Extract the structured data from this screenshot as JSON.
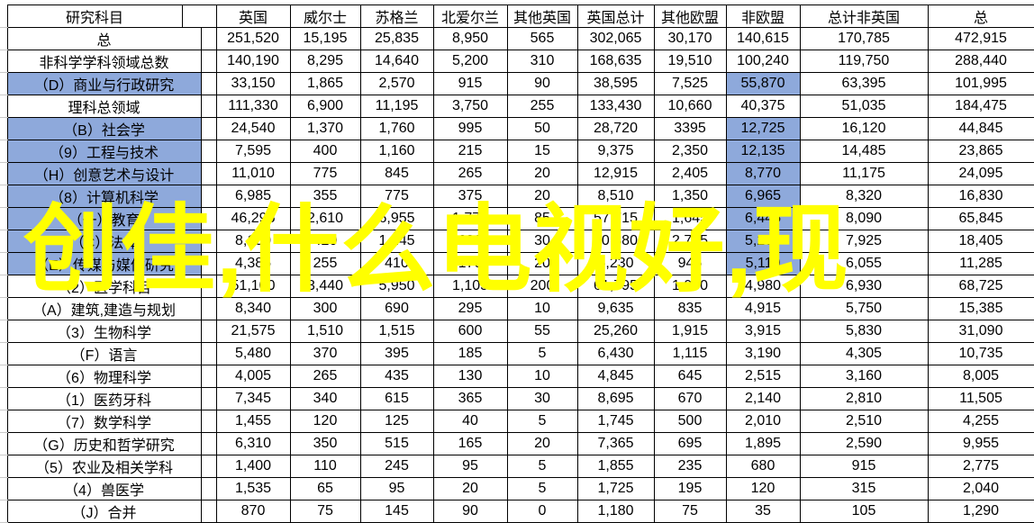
{
  "watermark": {
    "text": "创佳,什么电视好,现",
    "color": "#FFFF00"
  },
  "colors": {
    "highlight_blue": "#8EA9DB",
    "grid_line": "#000000",
    "sheet_gridline": "#c9c9c9",
    "background": "#ffffff"
  },
  "table": {
    "header": [
      "研究科目",
      "英国",
      "威尔士",
      "苏格兰",
      "北爱尔兰",
      "其他英国",
      "英国总计",
      "其他欧盟",
      "非欧盟",
      "总计非英国",
      "总"
    ],
    "rows": [
      {
        "label": "总",
        "label_hl": false,
        "noneu_hl": false,
        "values": [
          "251,520",
          "15,195",
          "25,835",
          "8,950",
          "565",
          "302,065",
          "30,170",
          "140,615",
          "170,785",
          "472,915"
        ]
      },
      {
        "label": "非科学学科领域总数",
        "label_hl": false,
        "noneu_hl": false,
        "values": [
          "140,190",
          "8,295",
          "14,640",
          "5,200",
          "310",
          "168,635",
          "19,510",
          "100,240",
          "119,750",
          "288,440"
        ]
      },
      {
        "label": "（D）商业与行政研究",
        "label_hl": true,
        "noneu_hl": true,
        "values": [
          "33,150",
          "1,865",
          "2,570",
          "915",
          "90",
          "38,595",
          "7,525",
          "55,870",
          "63,395",
          "101,995"
        ]
      },
      {
        "label": "理科总领域",
        "label_hl": false,
        "noneu_hl": false,
        "values": [
          "111,330",
          "6,900",
          "11,195",
          "3,750",
          "255",
          "133,430",
          "10,660",
          "40,375",
          "51,035",
          "184,475"
        ]
      },
      {
        "label": "（B）社会学",
        "label_hl": true,
        "noneu_hl": true,
        "values": [
          "24,540",
          "1,370",
          "1,760",
          "995",
          "50",
          "28,720",
          "3395",
          "12,725",
          "16,120",
          "44,845"
        ]
      },
      {
        "label": "（9）工程与技术",
        "label_hl": true,
        "noneu_hl": true,
        "values": [
          "7,595",
          "400",
          "1,160",
          "215",
          "15",
          "9,375",
          "2,350",
          "12,135",
          "14,485",
          "23,865"
        ]
      },
      {
        "label": "（H）创意艺术与设计",
        "label_hl": true,
        "noneu_hl": true,
        "values": [
          "11,010",
          "775",
          "845",
          "265",
          "20",
          "12,915",
          "2,405",
          "8,770",
          "11,175",
          "24,095"
        ]
      },
      {
        "label": "（8）计算机科学",
        "label_hl": true,
        "noneu_hl": true,
        "values": [
          "6,985",
          "355",
          "775",
          "375",
          "20",
          "8,510",
          "1,350",
          "6,965",
          "8,320",
          "16,830"
        ]
      },
      {
        "label": "（一）教育",
        "label_hl": true,
        "noneu_hl": true,
        "values": [
          "46,295",
          "2,610",
          "6,955",
          "1,775",
          "85",
          "57,715",
          "1,645",
          "6,445",
          "8,090",
          "65,845"
        ]
      },
      {
        "label": "（C）法律",
        "label_hl": true,
        "noneu_hl": true,
        "values": [
          "8,150",
          "420",
          "1,245",
          "630",
          "30",
          "10,480",
          "2,725",
          "5,200",
          "7,925",
          "18,405"
        ]
      },
      {
        "label": "（E）传媒与媒体研究",
        "label_hl": true,
        "noneu_hl": true,
        "values": [
          "4,385",
          "255",
          "410",
          "170",
          "20",
          "5,230",
          "945",
          "5,110",
          "6,055",
          "11,285"
        ]
      },
      {
        "label": "（2）医学科目",
        "label_hl": false,
        "noneu_hl": false,
        "values": [
          "51,100",
          "3,440",
          "5,950",
          "1,105",
          "200",
          "61,795",
          "1,950",
          "4,980",
          "6,930",
          "68,725"
        ]
      },
      {
        "label": "（A）建筑,建造与规划",
        "label_hl": false,
        "noneu_hl": false,
        "values": [
          "8,340",
          "300",
          "690",
          "295",
          "10",
          "9,635",
          "835",
          "4,915",
          "5,750",
          "15,385"
        ]
      },
      {
        "label": "（3）生物科学",
        "label_hl": false,
        "noneu_hl": false,
        "values": [
          "21,575",
          "1,510",
          "1,515",
          "600",
          "55",
          "25,260",
          "1,915",
          "3,915",
          "5,830",
          "31,090"
        ]
      },
      {
        "label": "（F）语言",
        "label_hl": false,
        "noneu_hl": false,
        "values": [
          "5,480",
          "370",
          "395",
          "185",
          "5",
          "6,430",
          "1,115",
          "3,190",
          "4,305",
          "10,735"
        ]
      },
      {
        "label": "（6）物理科学",
        "label_hl": false,
        "noneu_hl": false,
        "values": [
          "4,005",
          "265",
          "435",
          "130",
          "10",
          "4,845",
          "645",
          "2,515",
          "3,160",
          "8,005"
        ]
      },
      {
        "label": "（1）医药牙科",
        "label_hl": false,
        "noneu_hl": false,
        "values": [
          "7,345",
          "340",
          "615",
          "365",
          "30",
          "8,695",
          "670",
          "2,140",
          "2,810",
          "11,505"
        ]
      },
      {
        "label": "（7）数学科学",
        "label_hl": false,
        "noneu_hl": false,
        "values": [
          "1,455",
          "120",
          "125",
          "40",
          "5",
          "1,745",
          "500",
          "2,010",
          "2,510",
          "4,255"
        ]
      },
      {
        "label": "（G）历史和哲学研究",
        "label_hl": false,
        "noneu_hl": false,
        "values": [
          "6,310",
          "350",
          "515",
          "165",
          "20",
          "7,365",
          "695",
          "1,895",
          "2,590",
          "9,955"
        ]
      },
      {
        "label": "（5）农业及相关学科",
        "label_hl": false,
        "noneu_hl": false,
        "values": [
          "1,400",
          "110",
          "245",
          "95",
          "5",
          "1,855",
          "235",
          "680",
          "915",
          "2,775"
        ]
      },
      {
        "label": "（4）兽医学",
        "label_hl": false,
        "noneu_hl": false,
        "values": [
          "1,535",
          "65",
          "95",
          "20",
          "5",
          "1,725",
          "195",
          "120",
          "315",
          "2,040"
        ]
      },
      {
        "label": "（J）合并",
        "label_hl": false,
        "noneu_hl": false,
        "values": [
          "870",
          "75",
          "145",
          "90",
          "0",
          "1,180",
          "75",
          "35",
          "105",
          "1,290"
        ]
      }
    ]
  }
}
